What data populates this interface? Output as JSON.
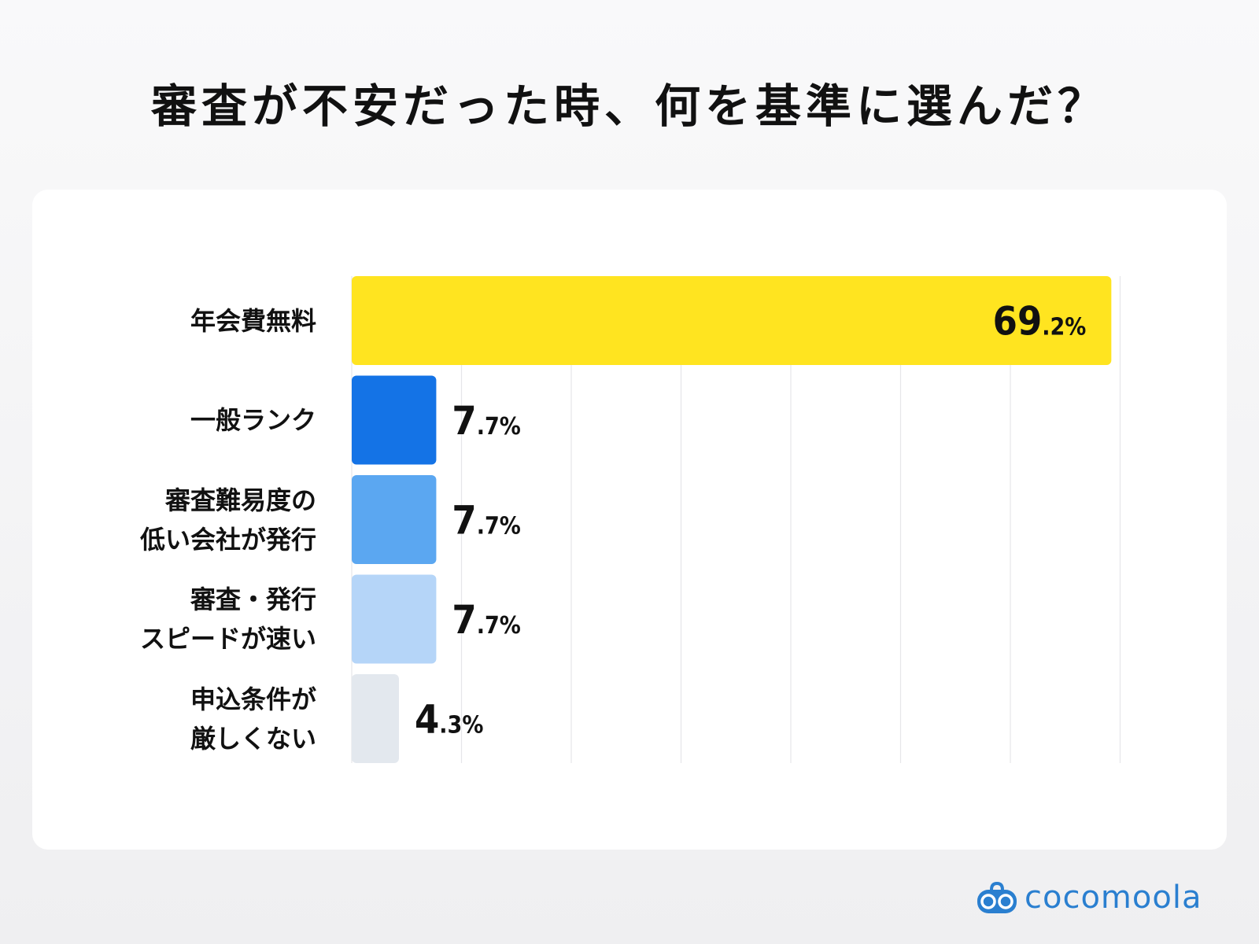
{
  "title": "審査が不安だった時、何を基準に選んだ？",
  "chart_data": {
    "type": "bar",
    "orientation": "horizontal",
    "title": "審査が不安だった時、何を基準に選んだ？",
    "categories": [
      [
        "年会費無料"
      ],
      [
        "一般ランク"
      ],
      [
        "審査難易度の",
        "低い会社が発行"
      ],
      [
        "審査・発行",
        "スピードが速い"
      ],
      [
        "申込条件が",
        "厳しくない"
      ]
    ],
    "values": [
      69.2,
      7.7,
      7.7,
      7.7,
      4.3
    ],
    "value_labels": [
      {
        "int": "69",
        "dec": ".2%"
      },
      {
        "int": "7",
        "dec": ".7%"
      },
      {
        "int": "7",
        "dec": ".7%"
      },
      {
        "int": "7",
        "dec": ".7%"
      },
      {
        "int": "4",
        "dec": ".3%"
      }
    ],
    "colors": [
      "#FFE420",
      "#1473E6",
      "#5BA7F1",
      "#B5D5F8",
      "#E3E8EE"
    ],
    "xlim": [
      0,
      70
    ],
    "grid": true,
    "grid_step": 10,
    "xlabel": "",
    "ylabel": ""
  },
  "brand": {
    "name": "cocomoola",
    "color": "#2a7fd0"
  }
}
